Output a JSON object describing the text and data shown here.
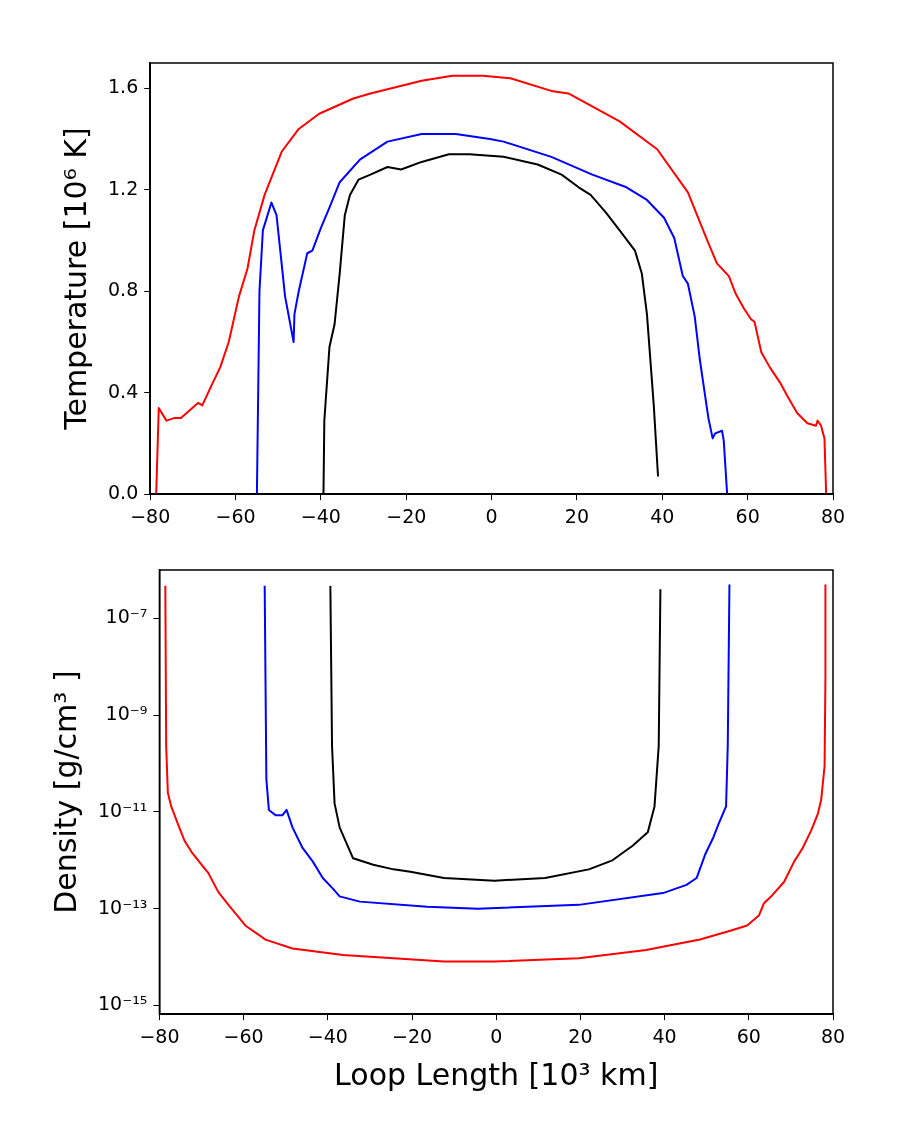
{
  "chart_data": [
    {
      "type": "line",
      "ylabel": "Temperature [10⁶ K]",
      "xlim": [
        -80,
        80
      ],
      "xticks": [
        {
          "value": -80,
          "label": "−80"
        },
        {
          "value": -60,
          "label": "−60"
        },
        {
          "value": -40,
          "label": "−40"
        },
        {
          "value": -20,
          "label": "−20"
        },
        0,
        20,
        40,
        60,
        80
      ],
      "ylim": [
        0,
        1.7
      ],
      "yticks": [
        {
          "value": 0,
          "label": "0.0"
        },
        0.4,
        0.8,
        1.2,
        1.6
      ],
      "grid": false,
      "legend": false,
      "marker": "none",
      "line_style": "solid",
      "series": [
        {
          "color": "#ff0000",
          "x": [
            -78.6,
            -78,
            -76.2,
            -74.4,
            -72.8,
            -70.8,
            -68.8,
            -67.8,
            -65.6,
            -63.6,
            -61.6,
            -59.2,
            -57.2,
            -55.6,
            -53.2,
            -49.2,
            -45.2,
            -40.4,
            -32.4,
            -28.4,
            -16.4,
            -9.2,
            -2,
            4.4,
            14,
            18,
            30,
            38.8,
            46,
            50.8,
            52.8,
            55.6,
            57.2,
            59.2,
            60.8,
            61.6,
            63.2,
            65.2,
            67.6,
            69.2,
            71.6,
            74,
            76,
            76.4,
            77.2,
            78,
            78.4
          ],
          "values": [
            0,
            0.34,
            0.29,
            0.3,
            0.3,
            0.33,
            0.36,
            0.35,
            0.43,
            0.5,
            0.6,
            0.78,
            0.89,
            1.04,
            1.18,
            1.35,
            1.44,
            1.5,
            1.56,
            1.58,
            1.63,
            1.65,
            1.65,
            1.64,
            1.59,
            1.58,
            1.47,
            1.36,
            1.19,
            0.99,
            0.91,
            0.86,
            0.79,
            0.73,
            0.69,
            0.68,
            0.56,
            0.5,
            0.44,
            0.39,
            0.32,
            0.28,
            0.27,
            0.29,
            0.27,
            0.22,
            0
          ]
        },
        {
          "color": "#0000ff",
          "x": [
            -55,
            -54.4,
            -53.6,
            -51.6,
            -50.4,
            -48.4,
            -46.4,
            -46.2,
            -45.2,
            -43.2,
            -42,
            -40,
            -38,
            -35.6,
            -30.8,
            -24.4,
            -16.4,
            -8.4,
            -0.4,
            2.8,
            14,
            23.6,
            31.6,
            36.4,
            40.4,
            42.8,
            44.8,
            46,
            47.6,
            48.8,
            50.8,
            51.8,
            52.4,
            54,
            54.4,
            55.2
          ],
          "values": [
            0,
            0.8,
            1.04,
            1.15,
            1.1,
            0.78,
            0.6,
            0.71,
            0.8,
            0.95,
            0.96,
            1.05,
            1.13,
            1.23,
            1.32,
            1.39,
            1.42,
            1.42,
            1.4,
            1.39,
            1.33,
            1.26,
            1.21,
            1.16,
            1.09,
            1.01,
            0.86,
            0.83,
            0.7,
            0.53,
            0.3,
            0.22,
            0.24,
            0.25,
            0.21,
            0
          ]
        },
        {
          "color": "#000000",
          "x": [
            -39.4,
            -39.2,
            -38,
            -36.8,
            -35.6,
            -34.4,
            -33.2,
            -31.2,
            -28.4,
            -24.4,
            -21.2,
            -16.4,
            -10,
            -5.2,
            2.8,
            10.8,
            16.4,
            20.4,
            23.2,
            26.8,
            30,
            33.6,
            35.2,
            36.4,
            38,
            39
          ],
          "values": [
            0,
            0.29,
            0.58,
            0.67,
            0.87,
            1.1,
            1.18,
            1.24,
            1.26,
            1.29,
            1.28,
            1.31,
            1.34,
            1.34,
            1.33,
            1.3,
            1.26,
            1.21,
            1.18,
            1.11,
            1.04,
            0.96,
            0.87,
            0.71,
            0.35,
            0.07
          ]
        }
      ]
    },
    {
      "type": "line",
      "xlabel": "Loop Length [10³ km]",
      "ylabel": "Density [g/cm³ ]",
      "log": "y",
      "xlim": [
        -80,
        80
      ],
      "xticks": [
        {
          "value": -80,
          "label": "−80"
        },
        {
          "value": -60,
          "label": "−60"
        },
        {
          "value": -40,
          "label": "−40"
        },
        {
          "value": -20,
          "label": "−20"
        },
        0,
        20,
        40,
        60,
        80
      ],
      "ylim": [
        6.6e-16,
        1e-06
      ],
      "yticks": [
        {
          "value": 1e-15,
          "label": "10⁻¹⁵"
        },
        {
          "value": 1e-13,
          "label": "10⁻¹³"
        },
        {
          "value": 1e-11,
          "label": "10⁻¹¹"
        },
        {
          "value": 1e-09,
          "label": "10⁻⁹"
        },
        {
          "value": 1e-07,
          "label": "10⁻⁷"
        }
      ],
      "grid": false,
      "legend": false,
      "marker": "none",
      "line_style": "solid",
      "series": [
        {
          "color": "#ff0000",
          "x": [
            -78.6,
            -78.4,
            -78,
            -77.2,
            -75.6,
            -74,
            -72.4,
            -70,
            -68.4,
            -66,
            -63.6,
            -59.6,
            -54.8,
            -48.4,
            -36.4,
            -12.4,
            -0.4,
            19.6,
            35.6,
            48.4,
            55.6,
            59.6,
            62.4,
            63.6,
            65.6,
            68.4,
            70.8,
            72.8,
            74.8,
            76.4,
            77.2,
            78,
            78.2,
            78.2
          ],
          "values": [
            4.7e-07,
            2.3e-10,
            2.5e-11,
            1.3e-11,
            5.6e-12,
            2.5e-12,
            1.5e-12,
            8.1e-13,
            5.5e-13,
            2.2e-13,
            1.2e-13,
            4.5e-14,
            2.3e-14,
            1.5e-14,
            1.1e-14,
            8.1e-15,
            8.1e-15,
            9.5e-15,
            1.4e-14,
            2.3e-14,
            3.5e-14,
            4.5e-14,
            7.2e-14,
            1.3e-13,
            1.9e-13,
            3.6e-13,
            9.5e-13,
            1.8e-12,
            4.1e-12,
            9.1e-12,
            1.8e-11,
            8.9e-11,
            5.9e-09,
            5e-07
          ]
        },
        {
          "color": "#0000ff",
          "x": [
            -55,
            -54.6,
            -54,
            -52.4,
            -50.8,
            -49.8,
            -48.4,
            -46,
            -43.6,
            -41.2,
            -38.8,
            -37.2,
            -32.4,
            -16.4,
            -4.4,
            19.6,
            39.6,
            45.2,
            47.6,
            49.6,
            51.6,
            52.8,
            54.6,
            55,
            55.4
          ],
          "values": [
            4.7e-07,
            4.7e-11,
            1.1e-11,
            8.5e-12,
            8.5e-12,
            1.1e-11,
            4.8e-12,
            1.8e-12,
            9.5e-13,
            4.3e-13,
            2.6e-13,
            1.8e-13,
            1.4e-13,
            1.1e-13,
            1e-13,
            1.2e-13,
            2.1e-13,
            3.1e-13,
            4.3e-13,
            1.3e-12,
            3e-12,
            5.6e-12,
            1.3e-11,
            2.3e-10,
            5e-07
          ]
        },
        {
          "color": "#000000",
          "x": [
            -39.4,
            -39,
            -38.4,
            -37.2,
            -34,
            -29.2,
            -24.4,
            -20.4,
            -12.4,
            -0.4,
            11.6,
            22,
            27.6,
            32.4,
            36,
            37.6,
            38.6,
            39
          ],
          "values": [
            4.7e-07,
            2.3e-10,
            1.5e-11,
            4.8e-12,
            1.1e-12,
            8.1e-13,
            6.5e-13,
            5.8e-13,
            4.3e-13,
            3.8e-13,
            4.3e-13,
            6.5e-13,
            1e-12,
            2e-12,
            3.8e-12,
            1.3e-11,
            2.3e-10,
            4e-07
          ]
        }
      ]
    }
  ]
}
